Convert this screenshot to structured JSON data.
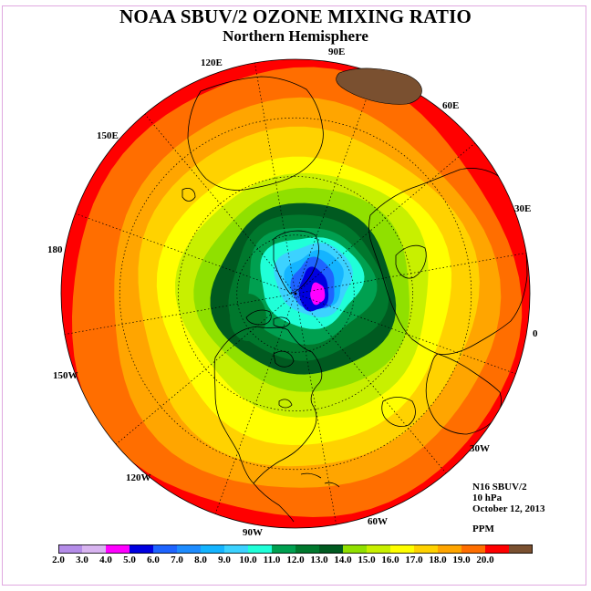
{
  "title": "NOAA SBUV/2 OZONE MIXING RATIO",
  "subtitle": "Northern Hemisphere",
  "longitude_labels": [
    "90E",
    "60E",
    "30E",
    "0",
    "30W",
    "60W",
    "90W",
    "120W",
    "150W",
    "180",
    "150E",
    "120E"
  ],
  "info": {
    "instrument": "N16 SBUV/2",
    "level": "10 hPa",
    "date": "October 12, 2013",
    "units": "PPM"
  },
  "colorbar": {
    "ticks": [
      "2.0",
      "3.0",
      "4.0",
      "5.0",
      "6.0",
      "7.0",
      "8.0",
      "9.0",
      "10.0",
      "11.0",
      "12.0",
      "13.0",
      "14.0",
      "15.0",
      "16.0",
      "17.0",
      "18.0",
      "19.0",
      "20.0"
    ],
    "colors": [
      "#b48ce8",
      "#d8b4f0",
      "#ff00ff",
      "#0000e0",
      "#1e64ff",
      "#1e8cff",
      "#14b4ff",
      "#3cd2ff",
      "#20ffd8",
      "#00a050",
      "#00782d",
      "#005a20",
      "#90e000",
      "#c8f000",
      "#ffff00",
      "#ffd200",
      "#ffa500",
      "#ff6e00",
      "#ff0000",
      "#7a5030"
    ]
  },
  "colors": {
    "coastline": "#000000",
    "grid": "#000000",
    "frame": "#e0a8e0"
  }
}
